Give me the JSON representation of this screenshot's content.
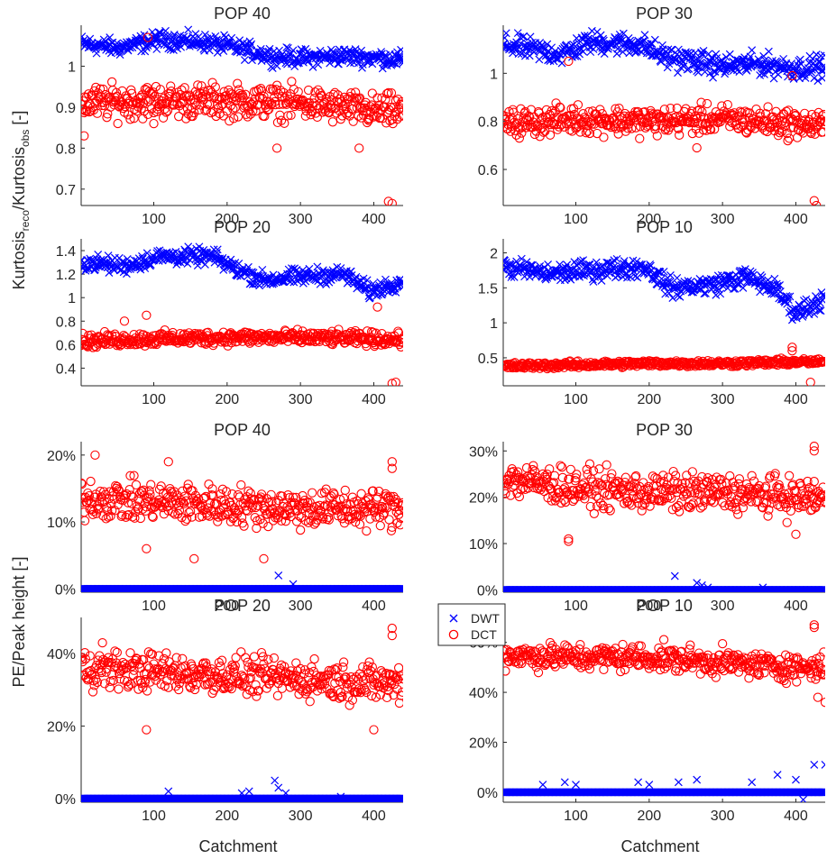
{
  "figure": {
    "ylabel_top_parts": [
      "Kurtosis",
      "reco",
      "/Kurtosis",
      "obs",
      " [-]"
    ],
    "ylabel_bottom": "PE/Peak height [-]",
    "xlabel": "Catchment",
    "legend": [
      "DWT",
      "DCT"
    ]
  },
  "colors": {
    "DWT": "#0000ff",
    "DCT": "#ff0000",
    "axis": "#262626"
  },
  "marker_icons": {
    "DWT": "x-marker-icon",
    "DCT": "circle-marker-icon"
  },
  "chart_data": [
    {
      "id": "kurt-pop40",
      "type": "scatter",
      "title": "POP 40",
      "xlim": [
        1,
        440
      ],
      "ylim": [
        0.66,
        1.1
      ],
      "xticks": [
        100,
        200,
        300,
        400
      ],
      "yticks": [
        0.7,
        0.8,
        0.9,
        1
      ],
      "ytick_labels": [
        "0.7",
        "0.8",
        "0.9",
        "1"
      ],
      "series": [
        {
          "name": "DWT",
          "marker": "x",
          "segments": [
            [
              1,
              1.055
            ],
            [
              50,
              1.045
            ],
            [
              110,
              1.065
            ],
            [
              160,
              1.06
            ],
            [
              200,
              1.05
            ],
            [
              260,
              1.025
            ],
            [
              300,
              1.02
            ],
            [
              360,
              1.025
            ],
            [
              410,
              1.02
            ],
            [
              440,
              1.015
            ]
          ],
          "spread": 0.018
        },
        {
          "name": "DCT",
          "marker": "o",
          "segments": [
            [
              1,
              0.91
            ],
            [
              100,
              0.915
            ],
            [
              200,
              0.915
            ],
            [
              300,
              0.91
            ],
            [
              400,
              0.89
            ],
            [
              440,
              0.89
            ]
          ],
          "spread": 0.035
        },
        {
          "name": "DCT",
          "marker": "o",
          "points": [
            [
              420,
              0.67
            ],
            [
              425,
              0.665
            ],
            [
              380,
              0.8
            ],
            [
              268,
              0.8
            ],
            [
              100,
              0.86
            ],
            [
              92,
              1.07
            ],
            [
              5,
              0.83
            ]
          ]
        }
      ]
    },
    {
      "id": "kurt-pop30",
      "type": "scatter",
      "title": "POP 30",
      "xlim": [
        1,
        440
      ],
      "ylim": [
        0.45,
        1.2
      ],
      "xticks": [
        100,
        200,
        300,
        400
      ],
      "yticks": [
        0.6,
        0.8,
        1
      ],
      "ytick_labels": [
        "0.6",
        "0.8",
        "1"
      ],
      "series": [
        {
          "name": "DWT",
          "marker": "x",
          "segments": [
            [
              1,
              1.12
            ],
            [
              80,
              1.08
            ],
            [
              120,
              1.13
            ],
            [
              190,
              1.12
            ],
            [
              220,
              1.07
            ],
            [
              260,
              1.05
            ],
            [
              300,
              1.03
            ],
            [
              350,
              1.04
            ],
            [
              400,
              1.02
            ],
            [
              440,
              1.03
            ]
          ],
          "spread": 0.04
        },
        {
          "name": "DCT",
          "marker": "o",
          "segments": [
            [
              1,
              0.79
            ],
            [
              100,
              0.81
            ],
            [
              200,
              0.8
            ],
            [
              300,
              0.81
            ],
            [
              400,
              0.79
            ],
            [
              440,
              0.78
            ]
          ],
          "spread": 0.05
        },
        {
          "name": "DCT",
          "marker": "o",
          "points": [
            [
              425,
              0.47
            ],
            [
              428,
              0.45
            ],
            [
              90,
              1.05
            ],
            [
              265,
              0.69
            ],
            [
              395,
              0.99
            ]
          ]
        }
      ]
    },
    {
      "id": "kurt-pop20",
      "type": "scatter",
      "title": "POP 20",
      "xlim": [
        1,
        440
      ],
      "ylim": [
        0.25,
        1.5
      ],
      "xticks": [
        100,
        200,
        300,
        400
      ],
      "yticks": [
        0.4,
        0.6,
        0.8,
        1,
        1.2,
        1.4
      ],
      "ytick_labels": [
        "0.4",
        "0.6",
        "0.8",
        "1",
        "1.2",
        "1.4"
      ],
      "series": [
        {
          "name": "DWT",
          "marker": "x",
          "segments": [
            [
              1,
              1.3
            ],
            [
              60,
              1.27
            ],
            [
              110,
              1.35
            ],
            [
              180,
              1.35
            ],
            [
              210,
              1.25
            ],
            [
              250,
              1.15
            ],
            [
              300,
              1.18
            ],
            [
              360,
              1.2
            ],
            [
              395,
              1.05
            ],
            [
              440,
              1.15
            ]
          ],
          "spread": 0.06
        },
        {
          "name": "DCT",
          "marker": "o",
          "segments": [
            [
              1,
              0.63
            ],
            [
              100,
              0.65
            ],
            [
              200,
              0.66
            ],
            [
              300,
              0.66
            ],
            [
              400,
              0.65
            ],
            [
              440,
              0.64
            ]
          ],
          "spread": 0.05
        },
        {
          "name": "DCT",
          "marker": "o",
          "points": [
            [
              425,
              0.27
            ],
            [
              430,
              0.28
            ],
            [
              90,
              0.85
            ],
            [
              405,
              0.92
            ],
            [
              60,
              0.8
            ]
          ]
        }
      ]
    },
    {
      "id": "kurt-pop10",
      "type": "scatter",
      "title": "POP 10",
      "xlim": [
        1,
        440
      ],
      "ylim": [
        0.1,
        2.2
      ],
      "xticks": [
        100,
        200,
        300,
        400
      ],
      "yticks": [
        0.5,
        1,
        1.5,
        2
      ],
      "ytick_labels": [
        "0.5",
        "1",
        "1.5",
        "2"
      ],
      "series": [
        {
          "name": "DWT",
          "marker": "x",
          "segments": [
            [
              1,
              1.8
            ],
            [
              60,
              1.7
            ],
            [
              120,
              1.75
            ],
            [
              195,
              1.8
            ],
            [
              230,
              1.5
            ],
            [
              290,
              1.55
            ],
            [
              330,
              1.65
            ],
            [
              370,
              1.5
            ],
            [
              400,
              1.15
            ],
            [
              440,
              1.35
            ]
          ],
          "spread": 0.12
        },
        {
          "name": "DCT",
          "marker": "o",
          "segments": [
            [
              1,
              0.38
            ],
            [
              100,
              0.4
            ],
            [
              200,
              0.42
            ],
            [
              300,
              0.42
            ],
            [
              400,
              0.44
            ],
            [
              440,
              0.44
            ]
          ],
          "spread": 0.04
        },
        {
          "name": "DCT",
          "marker": "o",
          "points": [
            [
              420,
              0.15
            ],
            [
              395,
              0.65
            ],
            [
              395,
              0.6
            ]
          ]
        }
      ]
    },
    {
      "id": "pe-pop40",
      "type": "scatter",
      "title": "POP 40",
      "xlim": [
        1,
        440
      ],
      "ylim": [
        -0.005,
        0.22
      ],
      "xticks": [
        100,
        200,
        300,
        400
      ],
      "yticks": [
        0,
        0.1,
        0.2
      ],
      "ytick_labels": [
        "0%",
        "10%",
        "20%"
      ],
      "series": [
        {
          "name": "DWT",
          "marker": "x",
          "segments": [
            [
              1,
              0.0
            ],
            [
              440,
              0.0
            ]
          ],
          "spread": 0.0
        },
        {
          "name": "DWT",
          "marker": "x",
          "points": [
            [
              270,
              0.02
            ],
            [
              290,
              0.007
            ],
            [
              222,
              -0.001
            ],
            [
              230,
              -0.001
            ],
            [
              430,
              -0.001
            ]
          ]
        },
        {
          "name": "DCT",
          "marker": "o",
          "segments": [
            [
              1,
              0.135
            ],
            [
              100,
              0.13
            ],
            [
              200,
              0.125
            ],
            [
              300,
              0.12
            ],
            [
              400,
              0.12
            ],
            [
              440,
              0.12
            ]
          ],
          "spread": 0.025
        },
        {
          "name": "DCT",
          "marker": "o",
          "points": [
            [
              20,
              0.2
            ],
            [
              120,
              0.19
            ],
            [
              425,
              0.19
            ],
            [
              425,
              0.18
            ],
            [
              250,
              0.045
            ],
            [
              155,
              0.045
            ],
            [
              90,
              0.06
            ]
          ]
        }
      ]
    },
    {
      "id": "pe-pop30",
      "type": "scatter",
      "title": "POP 30",
      "xlim": [
        1,
        440
      ],
      "ylim": [
        -0.005,
        0.32
      ],
      "xticks": [
        100,
        200,
        300,
        400
      ],
      "yticks": [
        0,
        0.1,
        0.2,
        0.3
      ],
      "ytick_labels": [
        "0%",
        "10%",
        "20%",
        "30%"
      ],
      "series": [
        {
          "name": "DWT",
          "marker": "x",
          "segments": [
            [
              1,
              0.0
            ],
            [
              440,
              0.0
            ]
          ],
          "spread": 0.0
        },
        {
          "name": "DWT",
          "marker": "x",
          "points": [
            [
              235,
              0.03
            ],
            [
              265,
              0.015
            ],
            [
              272,
              0.01
            ],
            [
              280,
              0.005
            ],
            [
              355,
              0.005
            ],
            [
              300,
              -0.002
            ]
          ]
        },
        {
          "name": "DCT",
          "marker": "o",
          "segments": [
            [
              1,
              0.24
            ],
            [
              100,
              0.22
            ],
            [
              200,
              0.21
            ],
            [
              300,
              0.21
            ],
            [
              400,
              0.2
            ],
            [
              440,
              0.2
            ]
          ],
          "spread": 0.035
        },
        {
          "name": "DCT",
          "marker": "o",
          "points": [
            [
              425,
              0.31
            ],
            [
              425,
              0.3
            ],
            [
              90,
              0.11
            ],
            [
              90,
              0.105
            ],
            [
              400,
              0.12
            ]
          ]
        }
      ]
    },
    {
      "id": "pe-pop20",
      "type": "scatter",
      "title": "POP 20",
      "xlim": [
        1,
        440
      ],
      "ylim": [
        -0.01,
        0.5
      ],
      "xticks": [
        100,
        200,
        300,
        400
      ],
      "yticks": [
        0,
        0.2,
        0.4
      ],
      "ytick_labels": [
        "0%",
        "20%",
        "40%"
      ],
      "series": [
        {
          "name": "DWT",
          "marker": "x",
          "segments": [
            [
              1,
              0.0
            ],
            [
              440,
              0.0
            ]
          ],
          "spread": 0.0
        },
        {
          "name": "DWT",
          "marker": "x",
          "points": [
            [
              120,
              0.02
            ],
            [
              220,
              0.015
            ],
            [
              230,
              0.02
            ],
            [
              265,
              0.05
            ],
            [
              270,
              0.03
            ],
            [
              280,
              0.015
            ],
            [
              355,
              0.005
            ]
          ]
        },
        {
          "name": "DCT",
          "marker": "o",
          "segments": [
            [
              1,
              0.36
            ],
            [
              100,
              0.35
            ],
            [
              200,
              0.34
            ],
            [
              300,
              0.33
            ],
            [
              400,
              0.32
            ],
            [
              440,
              0.32
            ]
          ],
          "spread": 0.045
        },
        {
          "name": "DCT",
          "marker": "o",
          "points": [
            [
              425,
              0.47
            ],
            [
              425,
              0.45
            ],
            [
              90,
              0.19
            ],
            [
              400,
              0.19
            ],
            [
              30,
              0.43
            ]
          ]
        }
      ]
    },
    {
      "id": "pe-pop10",
      "type": "scatter",
      "title": "POP 10",
      "xlim": [
        1,
        440
      ],
      "ylim": [
        -0.04,
        0.7
      ],
      "xticks": [
        100,
        200,
        300,
        400
      ],
      "yticks": [
        0,
        0.2,
        0.4,
        0.6
      ],
      "ytick_labels": [
        "0%",
        "20%",
        "40%",
        "60%"
      ],
      "series": [
        {
          "name": "DWT",
          "marker": "x",
          "segments": [
            [
              1,
              0.0
            ],
            [
              440,
              0.0
            ]
          ],
          "spread": 0.0
        },
        {
          "name": "DWT",
          "marker": "x",
          "points": [
            [
              55,
              0.03
            ],
            [
              85,
              0.04
            ],
            [
              100,
              0.03
            ],
            [
              185,
              0.04
            ],
            [
              200,
              0.03
            ],
            [
              240,
              0.04
            ],
            [
              265,
              0.05
            ],
            [
              340,
              0.04
            ],
            [
              375,
              0.07
            ],
            [
              400,
              0.05
            ],
            [
              425,
              0.11
            ],
            [
              440,
              0.11
            ],
            [
              410,
              -0.03
            ]
          ]
        },
        {
          "name": "DCT",
          "marker": "o",
          "segments": [
            [
              1,
              0.55
            ],
            [
              100,
              0.54
            ],
            [
              200,
              0.54
            ],
            [
              300,
              0.52
            ],
            [
              400,
              0.5
            ],
            [
              440,
              0.5
            ]
          ],
          "spread": 0.045
        },
        {
          "name": "DCT",
          "marker": "o",
          "points": [
            [
              425,
              0.67
            ],
            [
              425,
              0.66
            ],
            [
              440,
              0.36
            ],
            [
              430,
              0.38
            ]
          ]
        }
      ]
    }
  ]
}
